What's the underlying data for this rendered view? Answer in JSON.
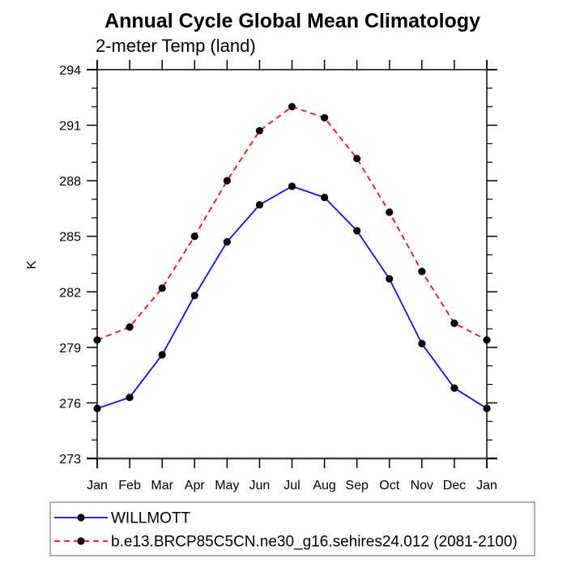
{
  "header": {
    "title": "Annual Cycle Global Mean Climatology",
    "subtitle": "2-meter Temp (land)"
  },
  "chart_data": {
    "type": "line",
    "categories": [
      "Jan",
      "Feb",
      "Mar",
      "Apr",
      "May",
      "Jun",
      "Jul",
      "Aug",
      "Sep",
      "Oct",
      "Nov",
      "Dec",
      "Jan"
    ],
    "series": [
      {
        "name": "WILLMOTT",
        "color": "#1111dd",
        "style": "solid",
        "values": [
          275.7,
          276.3,
          278.6,
          281.8,
          284.7,
          286.7,
          287.7,
          287.1,
          285.3,
          282.7,
          279.2,
          276.8,
          275.7
        ]
      },
      {
        "name": "b.e13.BRCP85C5CN.ne30_g16.sehires24.012 (2081-2100)",
        "color": "#ee1111",
        "style": "dashed",
        "values": [
          279.4,
          280.1,
          282.2,
          285.0,
          288.0,
          290.7,
          292.0,
          291.4,
          289.2,
          286.3,
          283.1,
          280.3,
          279.4
        ]
      }
    ],
    "title": "Annual Cycle Global Mean Climatology",
    "subtitle": "2-meter Temp (land)",
    "xlabel": "",
    "ylabel": "K",
    "ylim": [
      273,
      294
    ],
    "yticks": [
      273,
      276,
      279,
      282,
      285,
      288,
      291,
      294
    ],
    "ytick_minor_step": 1,
    "grid": "off",
    "marker": "filled-circle",
    "marker_color": "#000000",
    "legend_position": "bottom-left-box",
    "axis_color": "#444444"
  }
}
